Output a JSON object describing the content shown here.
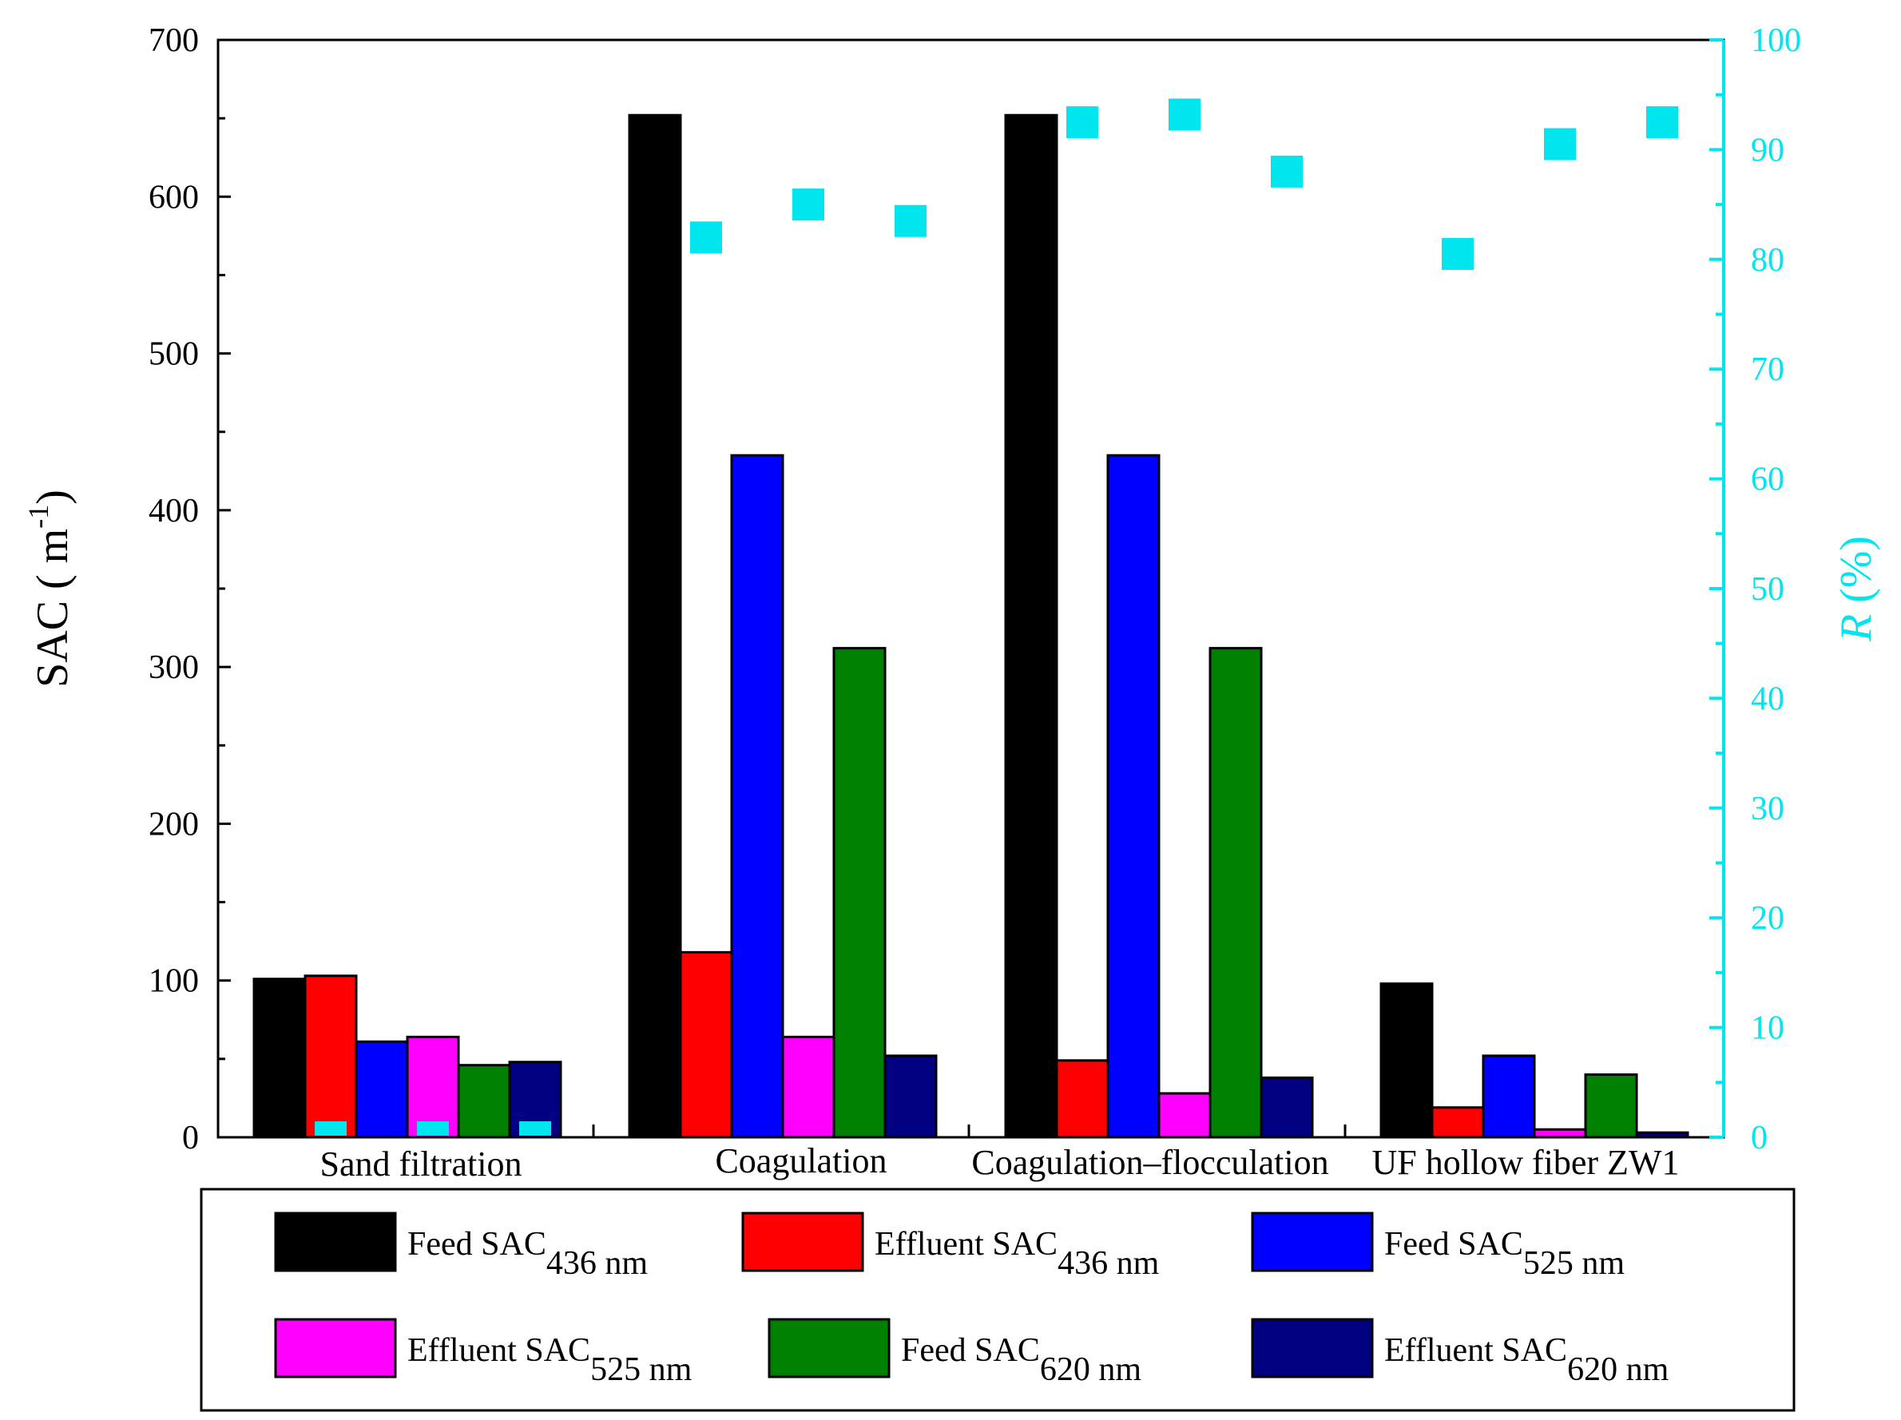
{
  "chart_data": {
    "type": "bar",
    "categories": [
      "Sand filtration",
      "Coagulation",
      "Coagulation–flocculation",
      "UF hollow fiber ZW1"
    ],
    "ylabel_left": {
      "main": "SAC ( m",
      "sup": "-1",
      "end": ")"
    },
    "ylabel_right": {
      "italic": "R",
      "rest": " (%)"
    },
    "ylim_left": [
      0,
      700
    ],
    "ylim_right": [
      0,
      100
    ],
    "yticks_left": [
      0,
      100,
      200,
      300,
      400,
      500,
      600,
      700
    ],
    "yticks_right": [
      0,
      10,
      20,
      30,
      40,
      50,
      60,
      70,
      80,
      90,
      100
    ],
    "series": [
      {
        "name": "Feed SAC",
        "sub": "436 nm",
        "color": "#000000",
        "values": [
          101,
          652,
          652,
          98
        ]
      },
      {
        "name": "Effluent SAC",
        "sub": "436 nm",
        "color": "#ff0000",
        "values": [
          103,
          118,
          49,
          19
        ]
      },
      {
        "name": "Feed SAC",
        "sub": "525 nm",
        "color": "#0000ff",
        "values": [
          61,
          435,
          435,
          52
        ]
      },
      {
        "name": "Effluent SAC",
        "sub": "525 nm",
        "color": "#ff00ff",
        "values": [
          64,
          64,
          28,
          5
        ]
      },
      {
        "name": "Feed SAC",
        "sub": "620 nm",
        "color": "#008000",
        "values": [
          46,
          312,
          312,
          40
        ]
      },
      {
        "name": "Effluent SAC",
        "sub": "620 nm",
        "color": "#000080",
        "values": [
          48,
          52,
          38,
          3
        ]
      }
    ],
    "removal_R": {
      "color": "#00e5ee",
      "points": [
        {
          "category": 0,
          "slot": 1,
          "value": 1
        },
        {
          "category": 0,
          "slot": 3,
          "value": 1
        },
        {
          "category": 0,
          "slot": 5,
          "value": 1
        },
        {
          "category": 1,
          "slot": 1,
          "value": 82
        },
        {
          "category": 1,
          "slot": 3,
          "value": 85
        },
        {
          "category": 1,
          "slot": 5,
          "value": 83.5
        },
        {
          "category": 2,
          "slot": 1,
          "value": 92.5
        },
        {
          "category": 2,
          "slot": 3,
          "value": 93.2
        },
        {
          "category": 2,
          "slot": 5,
          "value": 88
        },
        {
          "category": 3,
          "slot": 1,
          "value": 80.5
        },
        {
          "category": 3,
          "slot": 3,
          "value": 90.5
        },
        {
          "category": 3,
          "slot": 5,
          "value": 92.5
        }
      ]
    },
    "legend_position": "bottom"
  }
}
